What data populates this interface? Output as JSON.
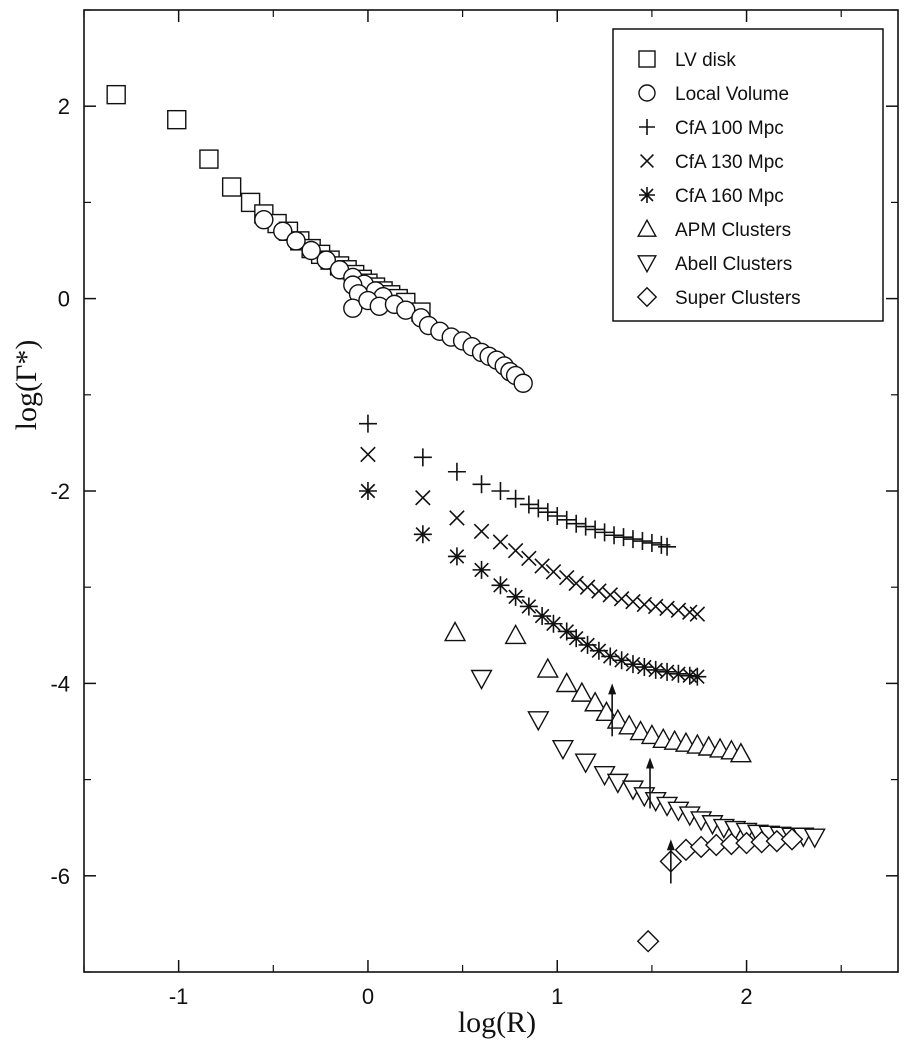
{
  "chart_data": {
    "type": "scatter",
    "title": "",
    "xlabel": "log(R)",
    "ylabel": "log(Γ*)",
    "xlim": [
      -1.5,
      2.8
    ],
    "ylim": [
      -7.0,
      3.0
    ],
    "xticks": [
      -1,
      0,
      1,
      2
    ],
    "xtick_labels": [
      "-1",
      "0",
      "1",
      "2"
    ],
    "yticks": [
      2,
      0,
      -2,
      -4,
      -6
    ],
    "ytick_labels": [
      "2",
      "0",
      "-2",
      "-4",
      "-6"
    ],
    "grid": false,
    "legend_position": "top-right",
    "series": [
      {
        "name": "LV disk",
        "marker": "square",
        "points": [
          [
            -1.33,
            2.12
          ],
          [
            -1.01,
            1.86
          ],
          [
            -0.84,
            1.45
          ],
          [
            -0.72,
            1.16
          ],
          [
            -0.62,
            1.0
          ],
          [
            -0.55,
            0.88
          ],
          [
            -0.48,
            0.78
          ],
          [
            -0.42,
            0.7
          ],
          [
            -0.36,
            0.6
          ],
          [
            -0.3,
            0.52
          ],
          [
            -0.25,
            0.46
          ],
          [
            -0.2,
            0.4
          ],
          [
            -0.15,
            0.34
          ],
          [
            -0.11,
            0.3
          ],
          [
            -0.07,
            0.25
          ],
          [
            -0.03,
            0.2
          ],
          [
            0.0,
            0.16
          ],
          [
            0.04,
            0.12
          ],
          [
            0.08,
            0.08
          ],
          [
            0.12,
            0.04
          ],
          [
            0.16,
            0.0
          ],
          [
            0.2,
            -0.04
          ],
          [
            0.28,
            -0.14
          ]
        ]
      },
      {
        "name": "Local Volume",
        "marker": "circle",
        "points": [
          [
            -0.55,
            0.82
          ],
          [
            -0.45,
            0.7
          ],
          [
            -0.38,
            0.6
          ],
          [
            -0.3,
            0.5
          ],
          [
            -0.22,
            0.4
          ],
          [
            -0.15,
            0.3
          ],
          [
            -0.08,
            0.22
          ],
          [
            -0.02,
            0.15
          ],
          [
            0.04,
            0.08
          ],
          [
            0.08,
            0.02
          ],
          [
            -0.08,
            0.14
          ],
          [
            -0.05,
            0.05
          ],
          [
            -0.08,
            -0.1
          ],
          [
            0.0,
            -0.02
          ],
          [
            0.06,
            -0.08
          ],
          [
            0.14,
            -0.06
          ],
          [
            0.2,
            -0.12
          ],
          [
            0.28,
            -0.2
          ],
          [
            0.32,
            -0.28
          ],
          [
            0.38,
            -0.34
          ],
          [
            0.44,
            -0.4
          ],
          [
            0.5,
            -0.44
          ],
          [
            0.55,
            -0.5
          ],
          [
            0.6,
            -0.56
          ],
          [
            0.64,
            -0.6
          ],
          [
            0.68,
            -0.64
          ],
          [
            0.72,
            -0.7
          ],
          [
            0.75,
            -0.76
          ],
          [
            0.78,
            -0.8
          ],
          [
            0.82,
            -0.88
          ]
        ]
      },
      {
        "name": "CfA 100 Mpc",
        "marker": "plus",
        "points": [
          [
            0.0,
            -1.3
          ],
          [
            0.29,
            -1.65
          ],
          [
            0.47,
            -1.8
          ],
          [
            0.6,
            -1.93
          ],
          [
            0.7,
            -2.0
          ],
          [
            0.78,
            -2.08
          ],
          [
            0.85,
            -2.14
          ],
          [
            0.9,
            -2.18
          ],
          [
            0.95,
            -2.22
          ],
          [
            1.0,
            -2.26
          ],
          [
            1.05,
            -2.3
          ],
          [
            1.1,
            -2.34
          ],
          [
            1.15,
            -2.37
          ],
          [
            1.2,
            -2.4
          ],
          [
            1.25,
            -2.43
          ],
          [
            1.3,
            -2.46
          ],
          [
            1.35,
            -2.48
          ],
          [
            1.4,
            -2.5
          ],
          [
            1.45,
            -2.52
          ],
          [
            1.5,
            -2.54
          ],
          [
            1.55,
            -2.56
          ],
          [
            1.58,
            -2.58
          ]
        ]
      },
      {
        "name": "CfA 130 Mpc",
        "marker": "cross",
        "points": [
          [
            0.0,
            -1.62
          ],
          [
            0.29,
            -2.07
          ],
          [
            0.47,
            -2.28
          ],
          [
            0.6,
            -2.42
          ],
          [
            0.7,
            -2.53
          ],
          [
            0.78,
            -2.62
          ],
          [
            0.85,
            -2.7
          ],
          [
            0.92,
            -2.78
          ],
          [
            0.98,
            -2.84
          ],
          [
            1.05,
            -2.9
          ],
          [
            1.1,
            -2.96
          ],
          [
            1.16,
            -3.0
          ],
          [
            1.22,
            -3.04
          ],
          [
            1.28,
            -3.08
          ],
          [
            1.34,
            -3.12
          ],
          [
            1.4,
            -3.15
          ],
          [
            1.46,
            -3.18
          ],
          [
            1.52,
            -3.2
          ],
          [
            1.58,
            -3.22
          ],
          [
            1.64,
            -3.24
          ],
          [
            1.7,
            -3.26
          ],
          [
            1.74,
            -3.28
          ]
        ]
      },
      {
        "name": "CfA 160 Mpc",
        "marker": "asterisk",
        "points": [
          [
            0.0,
            -2.0
          ],
          [
            0.29,
            -2.45
          ],
          [
            0.47,
            -2.68
          ],
          [
            0.6,
            -2.82
          ],
          [
            0.7,
            -2.98
          ],
          [
            0.78,
            -3.1
          ],
          [
            0.85,
            -3.2
          ],
          [
            0.92,
            -3.3
          ],
          [
            0.98,
            -3.38
          ],
          [
            1.05,
            -3.46
          ],
          [
            1.1,
            -3.53
          ],
          [
            1.16,
            -3.6
          ],
          [
            1.22,
            -3.66
          ],
          [
            1.28,
            -3.72
          ],
          [
            1.34,
            -3.76
          ],
          [
            1.4,
            -3.8
          ],
          [
            1.46,
            -3.83
          ],
          [
            1.52,
            -3.86
          ],
          [
            1.58,
            -3.88
          ],
          [
            1.64,
            -3.9
          ],
          [
            1.7,
            -3.92
          ],
          [
            1.74,
            -3.93
          ]
        ]
      },
      {
        "name": "APM Clusters",
        "marker": "triangle-up",
        "points": [
          [
            0.46,
            -3.47
          ],
          [
            0.78,
            -3.5
          ],
          [
            0.95,
            -3.85
          ],
          [
            1.05,
            -4.0
          ],
          [
            1.13,
            -4.1
          ],
          [
            1.2,
            -4.2
          ],
          [
            1.26,
            -4.3
          ],
          [
            1.32,
            -4.38
          ],
          [
            1.38,
            -4.44
          ],
          [
            1.44,
            -4.5
          ],
          [
            1.5,
            -4.54
          ],
          [
            1.56,
            -4.58
          ],
          [
            1.62,
            -4.6
          ],
          [
            1.68,
            -4.62
          ],
          [
            1.74,
            -4.64
          ],
          [
            1.8,
            -4.66
          ],
          [
            1.86,
            -4.68
          ],
          [
            1.92,
            -4.7
          ],
          [
            1.97,
            -4.73
          ]
        ]
      },
      {
        "name": "Abell Clusters",
        "marker": "triangle-down",
        "points": [
          [
            0.6,
            -3.95
          ],
          [
            0.9,
            -4.38
          ],
          [
            1.03,
            -4.68
          ],
          [
            1.15,
            -4.82
          ],
          [
            1.25,
            -4.95
          ],
          [
            1.32,
            -5.03
          ],
          [
            1.4,
            -5.1
          ],
          [
            1.46,
            -5.17
          ],
          [
            1.52,
            -5.22
          ],
          [
            1.58,
            -5.27
          ],
          [
            1.64,
            -5.32
          ],
          [
            1.7,
            -5.37
          ],
          [
            1.76,
            -5.42
          ],
          [
            1.82,
            -5.46
          ],
          [
            1.88,
            -5.5
          ],
          [
            1.94,
            -5.52
          ],
          [
            2.0,
            -5.54
          ],
          [
            2.06,
            -5.56
          ],
          [
            2.12,
            -5.57
          ],
          [
            2.18,
            -5.58
          ],
          [
            2.24,
            -5.59
          ],
          [
            2.3,
            -5.59
          ],
          [
            2.36,
            -5.6
          ]
        ]
      },
      {
        "name": "Super Clusters",
        "marker": "diamond",
        "points": [
          [
            1.48,
            -6.68
          ],
          [
            1.6,
            -5.85
          ],
          [
            1.68,
            -5.73
          ],
          [
            1.76,
            -5.7
          ],
          [
            1.84,
            -5.68
          ],
          [
            1.92,
            -5.67
          ],
          [
            2.0,
            -5.66
          ],
          [
            2.08,
            -5.65
          ],
          [
            2.16,
            -5.64
          ],
          [
            2.24,
            -5.62
          ]
        ]
      }
    ],
    "annotations": [
      {
        "type": "upper-limit-arrow",
        "x": 1.29,
        "y_from": -4.55,
        "y_to": -4.0
      },
      {
        "type": "upper-limit-arrow",
        "x": 1.49,
        "y_from": -5.3,
        "y_to": -4.77
      },
      {
        "type": "upper-limit-arrow",
        "x": 1.6,
        "y_from": -6.08,
        "y_to": -5.62
      }
    ]
  }
}
